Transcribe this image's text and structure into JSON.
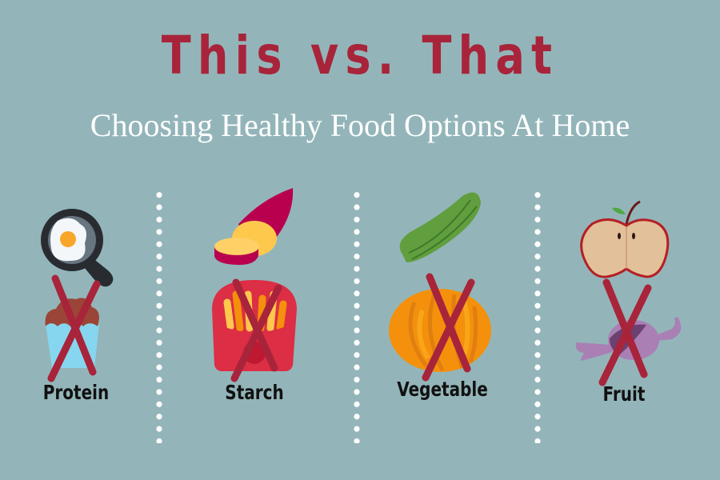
{
  "title": "This vs. That",
  "subtitle": "Choosing Healthy Food Options At Home",
  "colors": {
    "background": "#93b5b9",
    "title": "#a8243a",
    "subtitle": "#ffffff",
    "cross": "#a8243a"
  },
  "categories": [
    {
      "label": "Protein",
      "healthy_icon": "fried-egg-pan-icon",
      "unhealthy_icon": "muffin-icon"
    },
    {
      "label": "Starch",
      "healthy_icon": "sweet-potato-icon",
      "unhealthy_icon": "french-fries-icon"
    },
    {
      "label": "Vegetable",
      "healthy_icon": "cucumber-icon",
      "unhealthy_icon": "onion-ring-icon"
    },
    {
      "label": "Fruit",
      "healthy_icon": "apple-icon",
      "unhealthy_icon": "candy-icon"
    }
  ]
}
